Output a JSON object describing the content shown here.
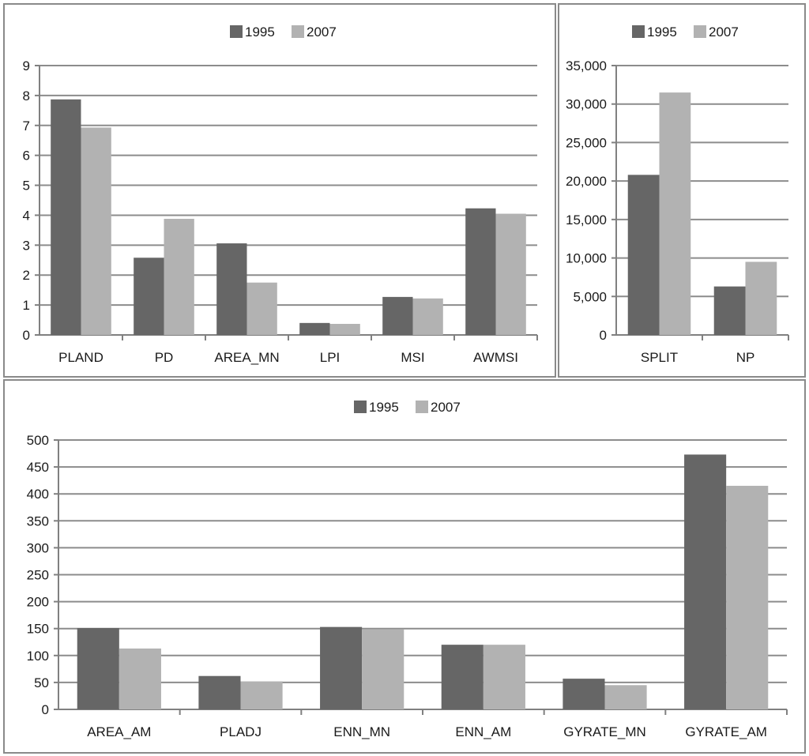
{
  "colors": {
    "s1995": "#666666",
    "s2007": "#b2b2b2",
    "grid": "#8c8c8c",
    "axis": "#808080"
  },
  "chart_data": [
    {
      "type": "bar",
      "categories": [
        "PLAND",
        "PD",
        "AREA_MN",
        "LPI",
        "MSI",
        "AWMSI"
      ],
      "series": [
        {
          "name": "1995",
          "values": [
            7.87,
            2.58,
            3.06,
            0.4,
            1.27,
            4.23
          ]
        },
        {
          "name": "2007",
          "values": [
            6.93,
            3.88,
            1.75,
            0.37,
            1.22,
            4.05
          ]
        }
      ],
      "ylim": [
        0,
        9
      ],
      "yticks": [
        0,
        1,
        2,
        3,
        4,
        5,
        6,
        7,
        8,
        9
      ],
      "ytick_labels": [
        "0",
        "1",
        "2",
        "3",
        "4",
        "5",
        "6",
        "7",
        "8",
        "9"
      ],
      "grid": true,
      "legend": "top"
    },
    {
      "type": "bar",
      "categories": [
        "SPLIT",
        "NP"
      ],
      "series": [
        {
          "name": "1995",
          "values": [
            20800,
            6300
          ]
        },
        {
          "name": "2007",
          "values": [
            31500,
            9500
          ]
        }
      ],
      "ylim": [
        0,
        35000
      ],
      "yticks": [
        0,
        5000,
        10000,
        15000,
        20000,
        25000,
        30000,
        35000
      ],
      "ytick_labels": [
        "0",
        "5,000",
        "10,000",
        "15,000",
        "20,000",
        "25,000",
        "30,000",
        "35,000"
      ],
      "grid": true,
      "legend": "top"
    },
    {
      "type": "bar",
      "categories": [
        "AREA_AM",
        "PLADJ",
        "ENN_MN",
        "ENN_AM",
        "GYRATE_MN",
        "GYRATE_AM"
      ],
      "series": [
        {
          "name": "1995",
          "values": [
            151,
            62,
            153,
            120,
            57,
            473
          ]
        },
        {
          "name": "2007",
          "values": [
            113,
            52,
            149,
            120,
            45,
            415
          ]
        }
      ],
      "ylim": [
        0,
        500
      ],
      "yticks": [
        0,
        50,
        100,
        150,
        200,
        250,
        300,
        350,
        400,
        450,
        500
      ],
      "ytick_labels": [
        "0",
        "50",
        "100",
        "150",
        "200",
        "250",
        "300",
        "350",
        "400",
        "450",
        "500"
      ],
      "grid": true,
      "legend": "top"
    }
  ]
}
